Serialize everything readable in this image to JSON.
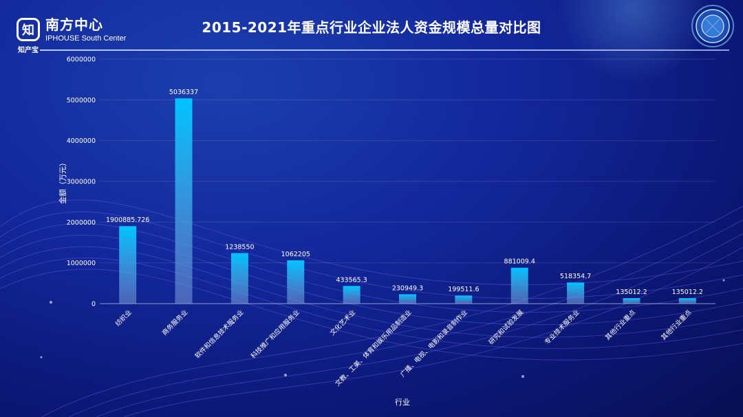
{
  "header": {
    "logo_cn": "南方中心",
    "logo_en": "IPHOUSE South Center",
    "logo_mark": "知",
    "logo_sub": "知产宝",
    "title": "2015-2021年重点行业企业法人资金规模总量对比图"
  },
  "colors": {
    "bar_top": "#00c4ff",
    "bar_bottom": "#7a9ad8",
    "accent": "#00c4ff"
  },
  "chart_data": {
    "type": "bar",
    "title": "2015-2021年重点行业企业法人资金规模总量对比图",
    "xlabel": "行业",
    "ylabel": "金额（万元）",
    "ylim": [
      0,
      6000000
    ],
    "yticks": [
      "0",
      "1000000",
      "2000000",
      "3000000",
      "4000000",
      "5000000",
      "6000000"
    ],
    "grid": true,
    "categories": [
      "纺织业",
      "商务服务业",
      "软件和信息技术服务业",
      "科技推广和应用服务业",
      "文化艺术业",
      "文教、工美、体育和娱乐用品制造业",
      "广播、电视、电影和录音制作业",
      "研究和试验发展",
      "专业技术服务业",
      "其他行业重点",
      "其他行业重点"
    ],
    "values": [
      1900885.726,
      5036337,
      1238550,
      1062205,
      433565.3,
      230949.3,
      199511.6,
      881009.4,
      518354.7,
      135012.2,
      135012.2
    ],
    "value_labels": [
      "1900885.726",
      "5036337",
      "1238550",
      "1062205",
      "433565.3",
      "230949.3",
      "199511.6",
      "881009.4",
      "518354.7",
      "135012.2",
      "135012.2"
    ]
  }
}
